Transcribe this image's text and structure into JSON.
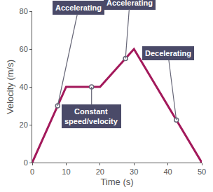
{
  "chart_data": {
    "type": "line",
    "x": [
      0,
      10,
      20,
      30,
      50
    ],
    "values": [
      0,
      40,
      40,
      60,
      0
    ],
    "color": "#a3195b",
    "xlim": [
      0,
      50
    ],
    "xticks": [
      0,
      10,
      20,
      30,
      40,
      50
    ],
    "ylim": [
      0,
      80
    ],
    "yticks": [
      0,
      20,
      40,
      60,
      80
    ],
    "x_label": "Time (s)",
    "y_label": "Velocity (m/s)",
    "grid": false,
    "annotations": [
      {
        "text": "Accelerating",
        "x": 7.5,
        "y": 30
      },
      {
        "text": "Constant speed/velocity",
        "x": 17.5,
        "y": 40
      },
      {
        "text": "Accelerating",
        "x": 27.5,
        "y": 55
      },
      {
        "text": "Decelerating",
        "x": 42.5,
        "y": 22.5
      }
    ]
  }
}
